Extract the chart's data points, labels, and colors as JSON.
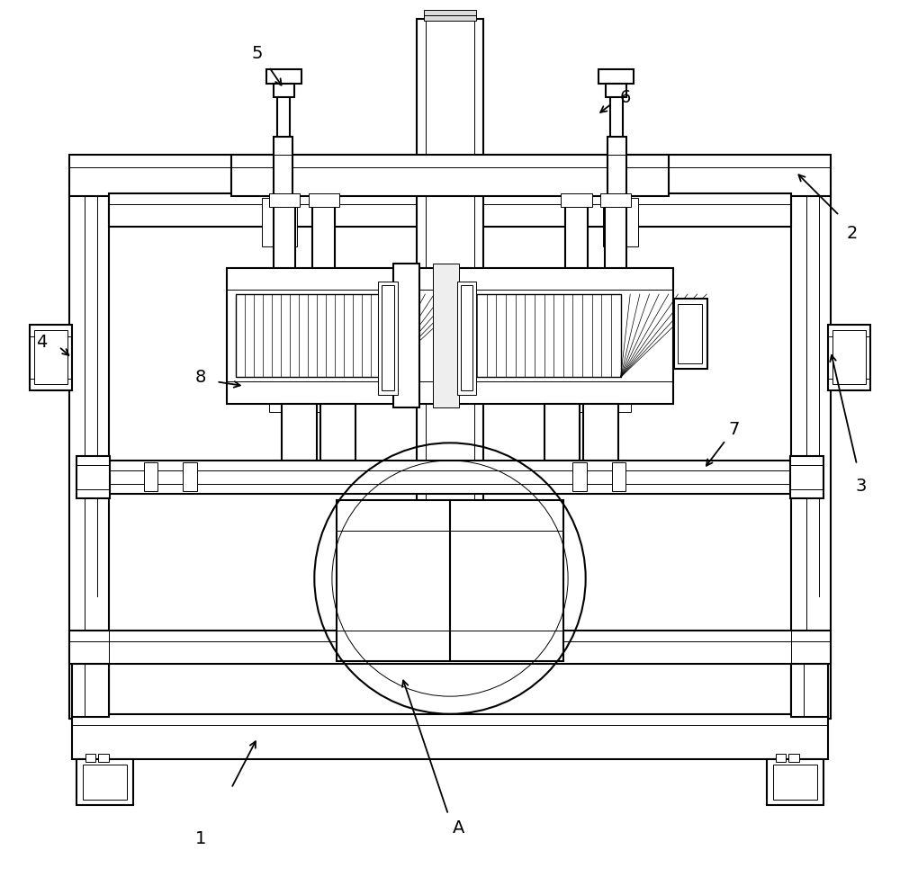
{
  "bg_color": "#ffffff",
  "fig_width": 10.0,
  "fig_height": 9.75,
  "lw_main": 1.5,
  "lw_thin": 0.7,
  "lw_med": 1.0
}
